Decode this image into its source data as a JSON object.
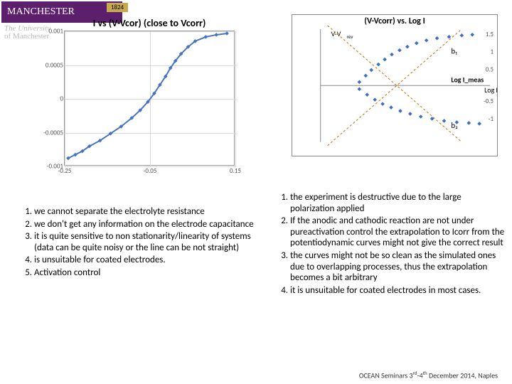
{
  "logo": {
    "name": "MANCHESTER",
    "year": "1824",
    "sub1": "The University",
    "sub2": "of Manchester"
  },
  "leftChart": {
    "title": "I vs (V-Vcor) (close to Vcorr)",
    "yticks": [
      {
        "label": "0.001",
        "pos": 0
      },
      {
        "label": "0.0005",
        "pos": 25
      },
      {
        "label": "0",
        "pos": 50
      },
      {
        "label": "-0.0005",
        "pos": 75
      },
      {
        "label": "-0.001",
        "pos": 100
      }
    ],
    "xticks": [
      {
        "label": "-0.25",
        "pos": 0
      },
      {
        "label": "-0.05",
        "pos": 50
      },
      {
        "label": "0.15",
        "pos": 100
      }
    ],
    "grid_color": "#d9d9d9",
    "curve_color": "#4472c4",
    "marker_color": "#4472c4",
    "marker_size": 4,
    "curve_points": [
      [
        5,
        180
      ],
      [
        15,
        175
      ],
      [
        25,
        170
      ],
      [
        35,
        163
      ],
      [
        50,
        155
      ],
      [
        65,
        145
      ],
      [
        80,
        135
      ],
      [
        95,
        123
      ],
      [
        107,
        112
      ],
      [
        118,
        100
      ],
      [
        127,
        88
      ],
      [
        135,
        76
      ],
      [
        143,
        64
      ],
      [
        150,
        52
      ],
      [
        157,
        42
      ],
      [
        165,
        32
      ],
      [
        175,
        22
      ],
      [
        185,
        14
      ],
      [
        200,
        8
      ],
      [
        215,
        5
      ],
      [
        230,
        3
      ]
    ]
  },
  "rightChart": {
    "title": "(V-Vcorr) vs. Log I",
    "axis_label_x": "Log I",
    "axis_color": "#888",
    "logi_meas": "Log I_meas",
    "b1": "b₁",
    "b2": "b₂",
    "yticks": [
      "1.5",
      "1",
      "0.5",
      "-0.5",
      "-1"
    ],
    "arm_color": "#3d6fc4",
    "dash_color": "#cc6600",
    "upper_arm": [
      [
        95,
        95
      ],
      [
        104,
        86
      ],
      [
        112,
        78
      ],
      [
        122,
        70
      ],
      [
        131,
        63
      ],
      [
        141,
        56
      ],
      [
        152,
        50
      ],
      [
        163,
        45
      ],
      [
        176,
        40
      ],
      [
        190,
        36
      ],
      [
        205,
        33
      ],
      [
        222,
        31
      ],
      [
        240,
        29
      ],
      [
        255,
        28
      ]
    ],
    "lower_arm": [
      [
        95,
        105
      ],
      [
        106,
        113
      ],
      [
        117,
        120
      ],
      [
        128,
        126
      ],
      [
        140,
        131
      ],
      [
        153,
        136
      ],
      [
        167,
        140
      ],
      [
        182,
        144
      ],
      [
        198,
        147
      ],
      [
        215,
        150
      ],
      [
        233,
        152
      ],
      [
        250,
        153
      ],
      [
        265,
        154
      ]
    ]
  },
  "leftList": [
    "we cannot separate the electrolyte resistance",
    "we don't get any information on the electrode capacitance",
    "it is quite sensitive to non stationarity/linearity of systems (data can be quite noisy or the line can be not straight)",
    "is unsuitable for coated electrodes.",
    "Activation control"
  ],
  "rightList": [
    "the experiment is destructive due to the large polarization applied",
    "If the anodic and cathodic reaction are not under pureactivation control the extrapolation to Icorr from the potentiodynamic curves might not give the correct result",
    "the curves might not be so clean as the simulated ones due to overlapping processes, thus the extrapolation becomes a bit arbitrary",
    "it is unsuitable for coated electrodes in most cases."
  ],
  "footer": "OCEAN Seminars 3rd-4th December 2014, Naples"
}
